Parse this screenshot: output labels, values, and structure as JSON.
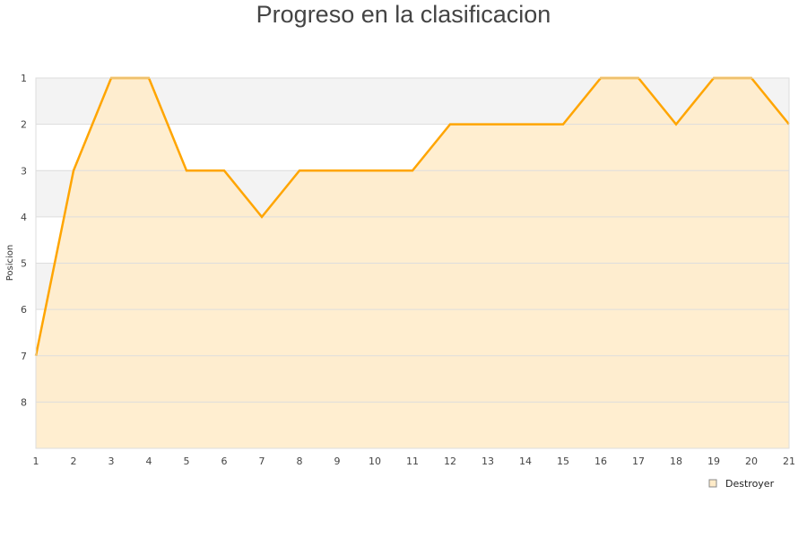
{
  "chart_data": {
    "type": "area",
    "title": "Progreso en la clasificacion",
    "xlabel": "",
    "ylabel": "Posicion",
    "x": [
      1,
      2,
      3,
      4,
      5,
      6,
      7,
      8,
      9,
      10,
      11,
      12,
      13,
      14,
      15,
      16,
      17,
      18,
      19,
      20,
      21
    ],
    "series": [
      {
        "name": "Destroyer",
        "values": [
          7,
          3,
          1,
          1,
          3,
          3,
          4,
          3,
          3,
          3,
          3,
          2,
          2,
          2,
          2,
          1,
          1,
          2,
          1,
          1,
          2
        ]
      }
    ],
    "xlim": [
      1,
      21
    ],
    "ylim": [
      9,
      1
    ],
    "y_inverted": true,
    "yticks": [
      1,
      2,
      3,
      4,
      5,
      6,
      7,
      8
    ],
    "grid": true,
    "legend": "bottom-right",
    "colors": {
      "line": "#ffa500",
      "fill": "#ffebc8",
      "band": "#f3f3f3"
    }
  }
}
